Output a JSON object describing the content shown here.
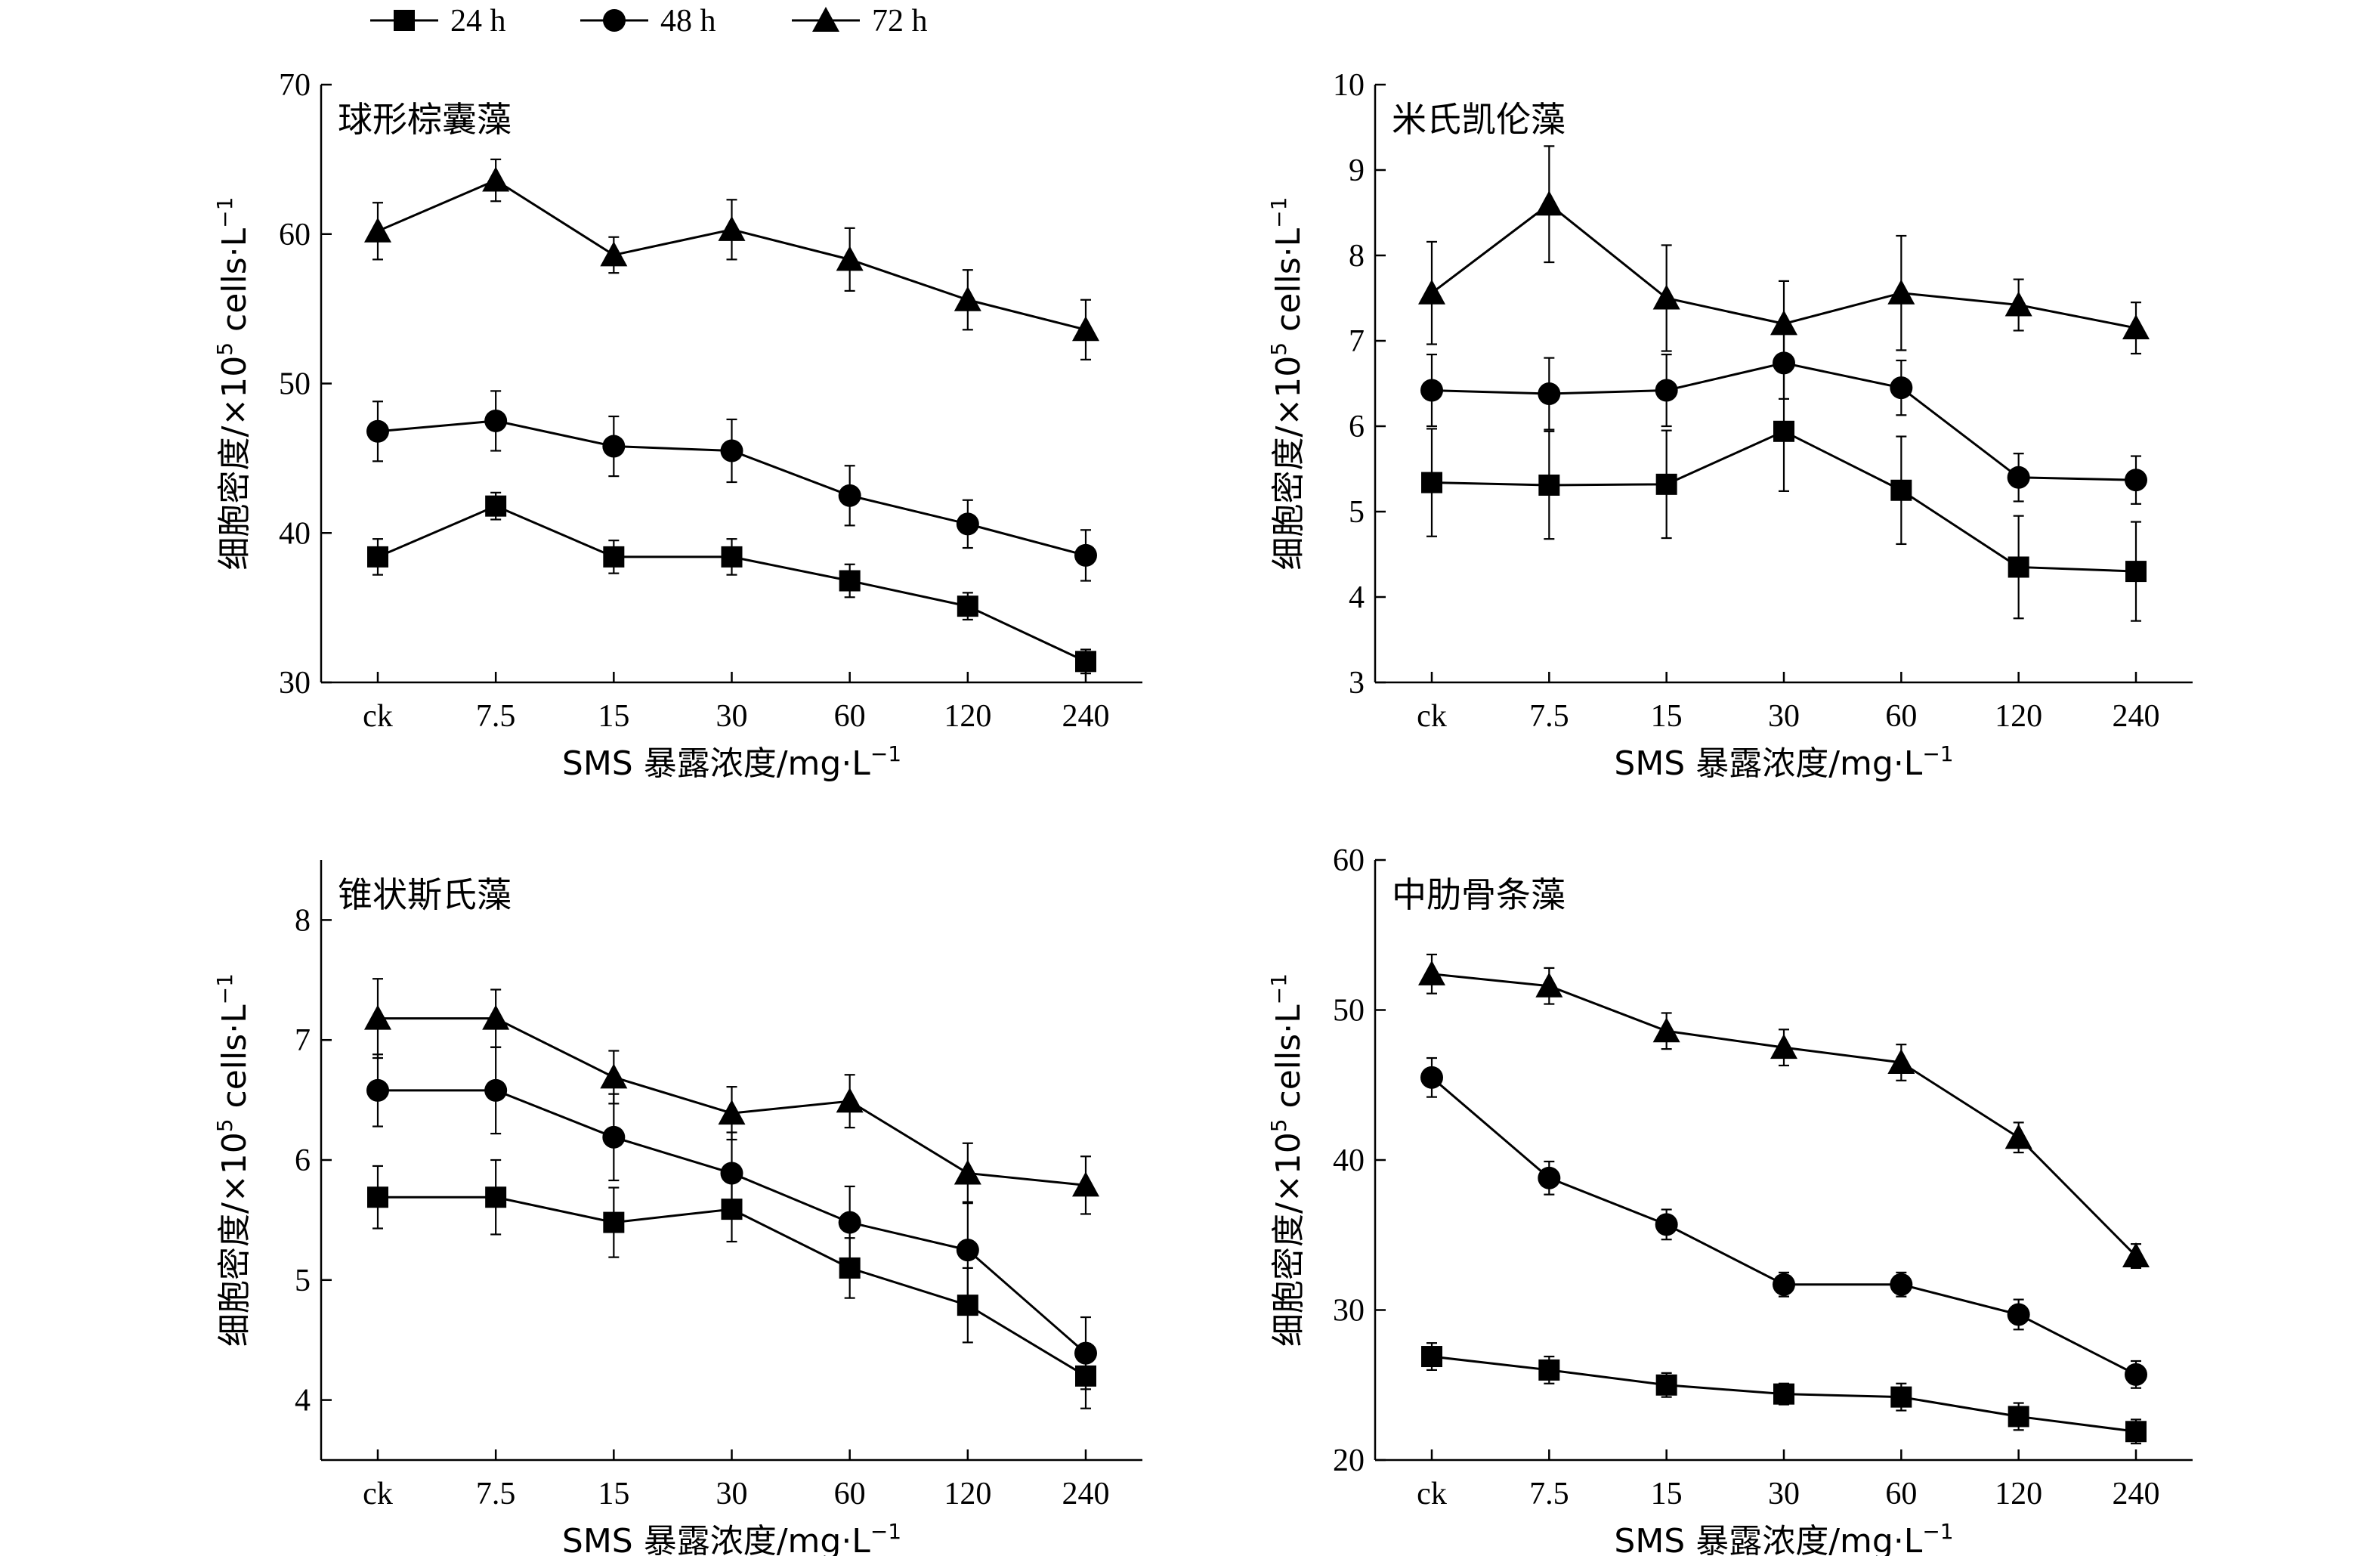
{
  "legend": [
    {
      "label": "24 h",
      "marker": "square"
    },
    {
      "label": "48 h",
      "marker": "circle"
    },
    {
      "label": "72 h",
      "marker": "triangle"
    }
  ],
  "chart_data": [
    {
      "type": "line",
      "title": "球形棕囊藻",
      "xlabel": "SMS 暴露浓度/mg·L",
      "xlabel_sup": "−1",
      "ylabel": "细胞密度/×10",
      "ylabel_exp": "5",
      "ylabel_unit": " cells·L",
      "ylabel_sup": "−1",
      "categories": [
        "ck",
        "7.5",
        "15",
        "30",
        "60",
        "120",
        "240"
      ],
      "ylim": [
        30,
        70
      ],
      "yticks": [
        "30",
        "40",
        "50",
        "60",
        "70"
      ],
      "series": [
        {
          "name": "24 h",
          "marker": "square",
          "values": [
            38.4,
            41.8,
            38.4,
            38.4,
            36.8,
            35.1,
            31.4
          ],
          "err": [
            1.2,
            0.9,
            1.1,
            1.2,
            1.1,
            0.9,
            0.8
          ]
        },
        {
          "name": "48 h",
          "marker": "circle",
          "values": [
            46.8,
            47.5,
            45.8,
            45.5,
            42.5,
            40.6,
            38.5
          ],
          "err": [
            2.0,
            2.0,
            2.0,
            2.1,
            2.0,
            1.6,
            1.7
          ]
        },
        {
          "name": "72 h",
          "marker": "triangle",
          "values": [
            60.2,
            63.6,
            58.6,
            60.3,
            58.3,
            55.6,
            53.6
          ],
          "err": [
            1.9,
            1.4,
            1.2,
            2.0,
            2.1,
            2.0,
            2.0
          ]
        }
      ]
    },
    {
      "type": "line",
      "title": "米氏凯伦藻",
      "xlabel": "SMS 暴露浓度/mg·L",
      "xlabel_sup": "−1",
      "ylabel": "细胞密度/×10",
      "ylabel_exp": "5",
      "ylabel_unit": " cells·L",
      "ylabel_sup": "−1",
      "categories": [
        "ck",
        "7.5",
        "15",
        "30",
        "60",
        "120",
        "240"
      ],
      "ylim": [
        3,
        10
      ],
      "yticks": [
        "3",
        "4",
        "5",
        "6",
        "7",
        "8",
        "9",
        "10"
      ],
      "series": [
        {
          "name": "24 h",
          "marker": "square",
          "values": [
            5.34,
            5.31,
            5.32,
            5.94,
            5.25,
            4.35,
            4.3
          ],
          "err": [
            0.63,
            0.63,
            0.63,
            0.7,
            0.63,
            0.6,
            0.58
          ]
        },
        {
          "name": "48 h",
          "marker": "circle",
          "values": [
            6.42,
            6.38,
            6.42,
            6.74,
            6.45,
            5.4,
            5.37
          ],
          "err": [
            0.42,
            0.42,
            0.42,
            0.42,
            0.32,
            0.28,
            0.28
          ]
        },
        {
          "name": "72 h",
          "marker": "triangle",
          "values": [
            7.56,
            8.6,
            7.5,
            7.2,
            7.56,
            7.42,
            7.15
          ],
          "err": [
            0.6,
            0.68,
            0.62,
            0.5,
            0.67,
            0.3,
            0.3
          ]
        }
      ]
    },
    {
      "type": "line",
      "title": "锥状斯氏藻",
      "xlabel": "SMS 暴露浓度/mg·L",
      "xlabel_sup": "−1",
      "ylabel": "细胞密度/×10",
      "ylabel_exp": "5",
      "ylabel_unit": " cells·L",
      "ylabel_sup": "−1",
      "categories": [
        "ck",
        "7.5",
        "15",
        "30",
        "60",
        "120",
        "240"
      ],
      "ylim": [
        3.5,
        8.5
      ],
      "yticks": [
        "4",
        "5",
        "6",
        "7",
        "8"
      ],
      "series": [
        {
          "name": "24 h",
          "marker": "square",
          "values": [
            5.69,
            5.69,
            5.48,
            5.59,
            5.1,
            4.79,
            4.2
          ],
          "err": [
            0.26,
            0.31,
            0.29,
            0.27,
            0.25,
            0.31,
            0.27
          ]
        },
        {
          "name": "48 h",
          "marker": "circle",
          "values": [
            6.58,
            6.58,
            6.19,
            5.89,
            5.48,
            5.25,
            4.39
          ],
          "err": [
            0.3,
            0.36,
            0.36,
            0.34,
            0.3,
            0.4,
            0.3
          ]
        },
        {
          "name": "72 h",
          "marker": "triangle",
          "values": [
            7.18,
            7.18,
            6.69,
            6.39,
            6.49,
            5.89,
            5.79
          ],
          "err": [
            0.33,
            0.24,
            0.22,
            0.22,
            0.22,
            0.25,
            0.24
          ]
        }
      ]
    },
    {
      "type": "line",
      "title": "中肋骨条藻",
      "xlabel": "SMS 暴露浓度/mg·L",
      "xlabel_sup": "−1",
      "ylabel": "细胞密度/×10",
      "ylabel_exp": "5",
      "ylabel_unit": " cells·L",
      "ylabel_sup": "−1",
      "categories": [
        "ck",
        "7.5",
        "15",
        "30",
        "60",
        "120",
        "240"
      ],
      "ylim": [
        20,
        60
      ],
      "yticks": [
        "20",
        "30",
        "40",
        "50",
        "60"
      ],
      "series": [
        {
          "name": "24 h",
          "marker": "square",
          "values": [
            26.9,
            26.0,
            25.0,
            24.4,
            24.2,
            22.9,
            21.9
          ],
          "err": [
            0.9,
            0.9,
            0.8,
            0.7,
            0.9,
            0.9,
            0.8
          ]
        },
        {
          "name": "48 h",
          "marker": "circle",
          "values": [
            45.5,
            38.8,
            35.7,
            31.7,
            31.7,
            29.7,
            25.7
          ],
          "err": [
            1.3,
            1.1,
            1.0,
            0.8,
            0.8,
            1.0,
            0.9
          ]
        },
        {
          "name": "72 h",
          "marker": "triangle",
          "values": [
            52.4,
            51.6,
            48.6,
            47.5,
            46.5,
            41.5,
            33.6
          ],
          "err": [
            1.3,
            1.2,
            1.2,
            1.2,
            1.2,
            1.0,
            0.8
          ]
        }
      ]
    }
  ]
}
